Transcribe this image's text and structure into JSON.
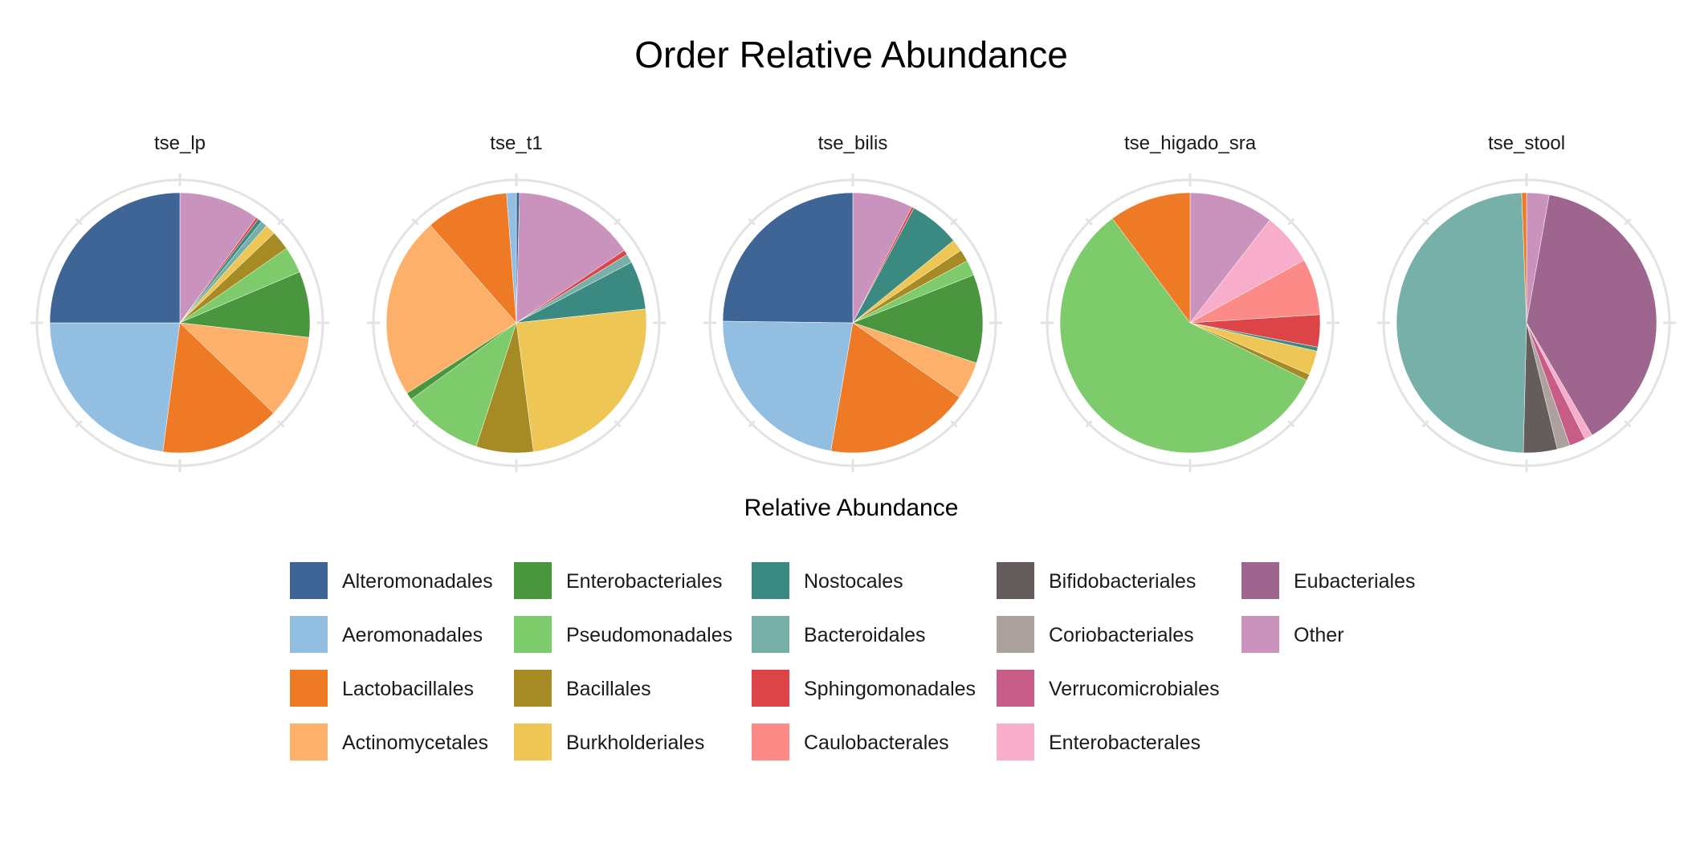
{
  "chart_data": {
    "type": "pie",
    "title": "Order Relative Abundance",
    "legend_title": "Relative Abundance",
    "legend_position": "bottom",
    "orders": [
      {
        "name": "Alteromonadales",
        "color": "#3E6596"
      },
      {
        "name": "Aeromonadales",
        "color": "#92BFE1"
      },
      {
        "name": "Lactobacillales",
        "color": "#EE7A26"
      },
      {
        "name": "Actinomycetales",
        "color": "#FDB06A"
      },
      {
        "name": "Enterobacteriales",
        "color": "#4A963E"
      },
      {
        "name": "Pseudomonadales",
        "color": "#7DCB6A"
      },
      {
        "name": "Bacillales",
        "color": "#A68A24"
      },
      {
        "name": "Burkholderiales",
        "color": "#EDC656"
      },
      {
        "name": "Nostocales",
        "color": "#3B8A81"
      },
      {
        "name": "Bacteroidales",
        "color": "#77B0A8"
      },
      {
        "name": "Sphingomonadales",
        "color": "#DC4448"
      },
      {
        "name": "Caulobacterales",
        "color": "#FC8A87"
      },
      {
        "name": "Bifidobacteriales",
        "color": "#655C5C"
      },
      {
        "name": "Coriobacteriales",
        "color": "#ACA19C"
      },
      {
        "name": "Verrucomicrobiales",
        "color": "#C75C86"
      },
      {
        "name": "Enterobacterales",
        "color": "#F8AECA"
      },
      {
        "name": "Eubacteriales",
        "color": "#9E658F"
      },
      {
        "name": "Other",
        "color": "#CA93BD"
      }
    ],
    "panels": [
      {
        "name": "tse_lp",
        "slices": [
          {
            "order": "Other",
            "value": 10.0
          },
          {
            "order": "Sphingomonadales",
            "value": 0.3
          },
          {
            "order": "Nostocales",
            "value": 0.5
          },
          {
            "order": "Bacteroidales",
            "value": 0.8
          },
          {
            "order": "Burkholderiales",
            "value": 1.3
          },
          {
            "order": "Bacillales",
            "value": 2.4
          },
          {
            "order": "Pseudomonadales",
            "value": 3.3
          },
          {
            "order": "Enterobacteriales",
            "value": 8.2
          },
          {
            "order": "Actinomycetales",
            "value": 10.4
          },
          {
            "order": "Lactobacillales",
            "value": 14.9
          },
          {
            "order": "Aeromonadales",
            "value": 22.9
          },
          {
            "order": "Alteromonadales",
            "value": 25.0
          }
        ]
      },
      {
        "name": "tse_t1",
        "slices": [
          {
            "order": "Alteromonadales",
            "value": 0.4
          },
          {
            "order": "Other",
            "value": 15.2
          },
          {
            "order": "Sphingomonadales",
            "value": 0.6
          },
          {
            "order": "Bacteroidales",
            "value": 1.1
          },
          {
            "order": "Nostocales",
            "value": 6.0
          },
          {
            "order": "Burkholderiales",
            "value": 24.6
          },
          {
            "order": "Bacillales",
            "value": 7.1
          },
          {
            "order": "Pseudomonadales",
            "value": 10.0
          },
          {
            "order": "Enterobacteriales",
            "value": 0.9
          },
          {
            "order": "Actinomycetales",
            "value": 22.6
          },
          {
            "order": "Lactobacillales",
            "value": 10.3
          },
          {
            "order": "Aeromonadales",
            "value": 1.2
          }
        ]
      },
      {
        "name": "tse_bilis",
        "slices": [
          {
            "order": "Other",
            "value": 7.5
          },
          {
            "order": "Sphingomonadales",
            "value": 0.3
          },
          {
            "order": "Nostocales",
            "value": 6.3
          },
          {
            "order": "Burkholderiales",
            "value": 1.5
          },
          {
            "order": "Bacillales",
            "value": 1.5
          },
          {
            "order": "Pseudomonadales",
            "value": 1.9
          },
          {
            "order": "Enterobacteriales",
            "value": 11.0
          },
          {
            "order": "Actinomycetales",
            "value": 4.7
          },
          {
            "order": "Lactobacillales",
            "value": 18.0
          },
          {
            "order": "Aeromonadales",
            "value": 22.5
          },
          {
            "order": "Alteromonadales",
            "value": 24.8
          }
        ]
      },
      {
        "name": "tse_higado_sra",
        "slices": [
          {
            "order": "Other",
            "value": 10.5
          },
          {
            "order": "Enterobacterales",
            "value": 6.5
          },
          {
            "order": "Caulobacterales",
            "value": 7.0
          },
          {
            "order": "Sphingomonadales",
            "value": 4.0
          },
          {
            "order": "Nostocales",
            "value": 0.5
          },
          {
            "order": "Burkholderiales",
            "value": 3.0
          },
          {
            "order": "Bacillales",
            "value": 0.8
          },
          {
            "order": "Pseudomonadales",
            "value": 57.5
          },
          {
            "order": "Lactobacillales",
            "value": 10.2
          }
        ]
      },
      {
        "name": "tse_stool",
        "slices": [
          {
            "order": "Other",
            "value": 2.8
          },
          {
            "order": "Eubacteriales",
            "value": 38.8
          },
          {
            "order": "Enterobacterales",
            "value": 1.0
          },
          {
            "order": "Verrucomicrobiales",
            "value": 2.0
          },
          {
            "order": "Coriobacteriales",
            "value": 1.6
          },
          {
            "order": "Bifidobacteriales",
            "value": 4.2
          },
          {
            "order": "Bacteroidales",
            "value": 49.0
          },
          {
            "order": "Lactobacillales",
            "value": 0.6
          }
        ]
      }
    ]
  }
}
